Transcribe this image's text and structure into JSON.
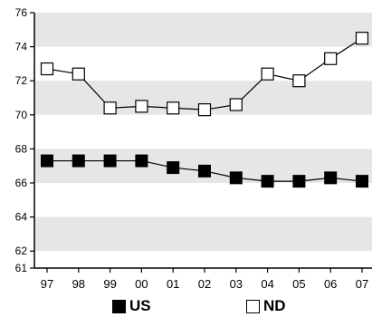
{
  "chart_data": {
    "type": "line",
    "title": "",
    "x": [
      "97",
      "98",
      "99",
      "00",
      "01",
      "02",
      "03",
      "04",
      "05",
      "06",
      "07"
    ],
    "ylim": [
      61,
      76
    ],
    "yticks": [
      61,
      62,
      64,
      66,
      68,
      70,
      72,
      74,
      76
    ],
    "shaded_bands": [
      [
        62,
        64
      ],
      [
        66,
        68
      ],
      [
        70,
        72
      ],
      [
        74,
        76
      ]
    ],
    "series": [
      {
        "name": "US",
        "marker": "filled-square",
        "values": [
          67.3,
          67.3,
          67.3,
          67.3,
          66.9,
          66.7,
          66.3,
          66.1,
          66.1,
          66.3,
          66.1
        ]
      },
      {
        "name": "ND",
        "marker": "hollow-square",
        "values": [
          72.7,
          72.4,
          70.4,
          70.5,
          70.4,
          70.3,
          70.6,
          72.4,
          72.0,
          73.3,
          74.5
        ]
      }
    ],
    "legend_position": "bottom",
    "colors": {
      "band": "#e6e6e6",
      "line": "#000000",
      "background": "#ffffff"
    }
  }
}
